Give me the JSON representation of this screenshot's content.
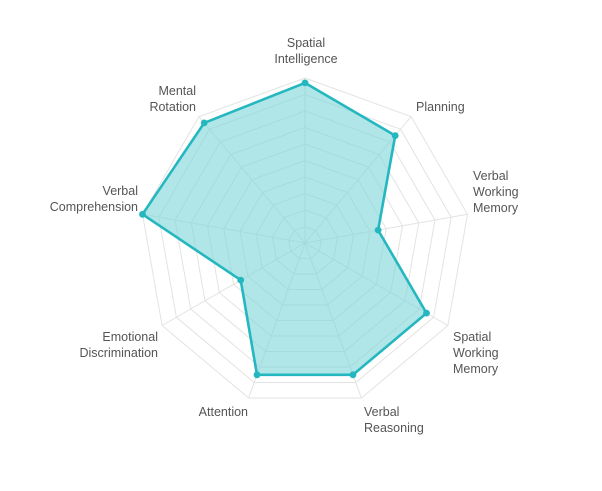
{
  "chart_data": {
    "type": "radar",
    "title": "",
    "axes": [
      "Spatial Intelligence",
      "Planning",
      "Verbal Working Memory",
      "Spatial Working Memory",
      "Verbal Reasoning",
      "Attention",
      "Emotional Discrimination",
      "Verbal Comprehension",
      "Mental Rotation"
    ],
    "series": [
      {
        "values": [
          97,
          85,
          45,
          85,
          85,
          85,
          45,
          100,
          95
        ]
      }
    ],
    "range": [
      0,
      100
    ],
    "grid_levels": 10,
    "grid": true,
    "legend": "none",
    "colors": {
      "stroke": "#25b7bf",
      "fill": "#7fd6d8",
      "grid": "#e3e3e3",
      "label": "#555555"
    }
  }
}
